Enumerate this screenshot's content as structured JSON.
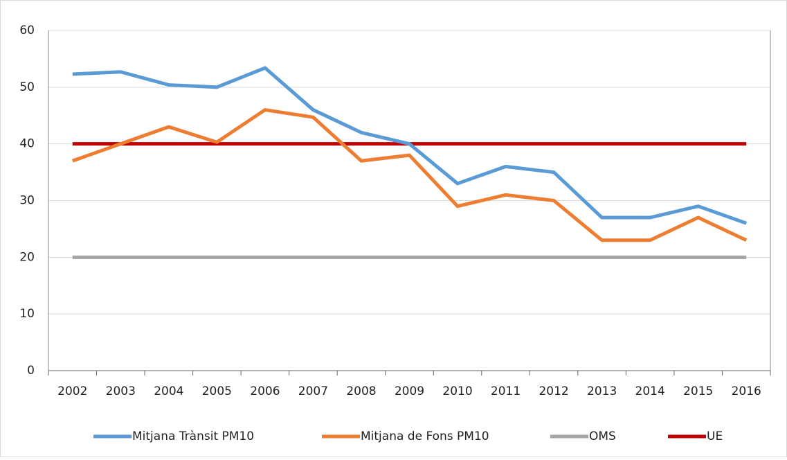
{
  "chart_data": {
    "type": "line",
    "categories": [
      "2002",
      "2003",
      "2004",
      "2005",
      "2006",
      "2007",
      "2008",
      "2009",
      "2010",
      "2011",
      "2012",
      "2013",
      "2014",
      "2015",
      "2016"
    ],
    "series": [
      {
        "name": "Mitjana Trànsit  PM10",
        "color": "#5b9bd5",
        "values": [
          52.3,
          52.7,
          50.4,
          50.0,
          53.4,
          46,
          42,
          40,
          33,
          36,
          35,
          27,
          27,
          29,
          26
        ]
      },
      {
        "name": "Mitjana de Fons PM10",
        "color": "#ed7d31",
        "values": [
          37,
          40,
          43,
          40.3,
          46,
          44.7,
          37,
          38,
          29,
          31,
          30,
          23,
          23,
          27,
          23
        ]
      },
      {
        "name": "OMS",
        "color": "#a5a5a5",
        "values": [
          20,
          20,
          20,
          20,
          20,
          20,
          20,
          20,
          20,
          20,
          20,
          20,
          20,
          20,
          20
        ]
      },
      {
        "name": "UE",
        "color": "#c00000",
        "values": [
          40,
          40,
          40,
          40,
          40,
          40,
          40,
          40,
          40,
          40,
          40,
          40,
          40,
          40,
          40
        ]
      }
    ],
    "ylim": [
      0,
      60
    ],
    "yticks": [
      0,
      10,
      20,
      30,
      40,
      50,
      60
    ],
    "grid": true,
    "legend": "bottom"
  }
}
